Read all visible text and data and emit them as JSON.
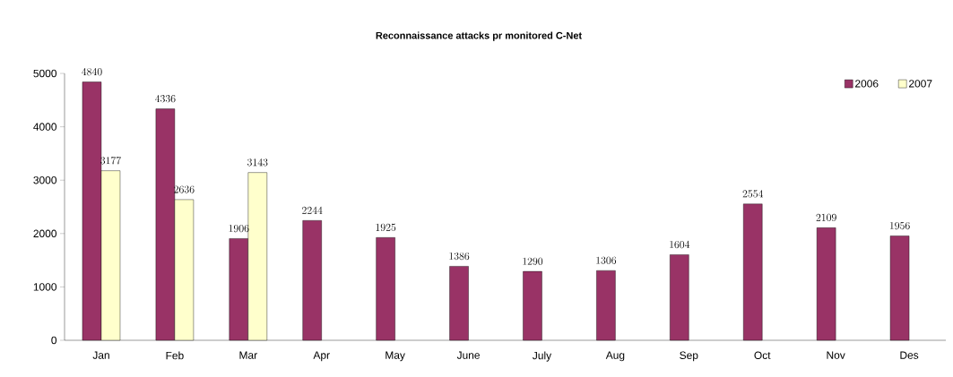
{
  "chart_data": {
    "type": "bar",
    "title": "Reconnaissance attacks pr monitored C-Net",
    "categories": [
      "Jan",
      "Feb",
      "Mar",
      "Apr",
      "May",
      "June",
      "July",
      "Aug",
      "Sep",
      "Oct",
      "Nov",
      "Des"
    ],
    "series": [
      {
        "name": "2006",
        "color": "#993366",
        "values": [
          4840,
          4336,
          1906,
          2244,
          1925,
          1386,
          1290,
          1306,
          1604,
          2554,
          2109,
          1956
        ]
      },
      {
        "name": "2007",
        "color": "#ffffcc",
        "values": [
          3177,
          2636,
          3143,
          null,
          null,
          null,
          null,
          null,
          null,
          null,
          null,
          null
        ]
      }
    ],
    "ylim": [
      0,
      5000
    ],
    "yticks": [
      0,
      1000,
      2000,
      3000,
      4000,
      5000
    ],
    "data_labels": true,
    "grid": false,
    "legend": "top right"
  }
}
